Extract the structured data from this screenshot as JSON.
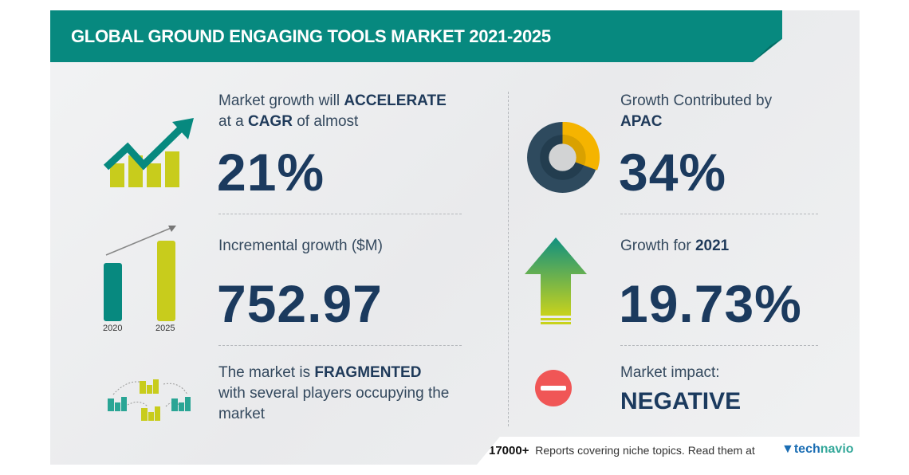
{
  "title": "GLOBAL GROUND ENGAGING TOOLS MARKET 2021-2025",
  "left": {
    "cagr": {
      "pre": "Market growth will ",
      "strong1": "ACCELERATE",
      "mid": "at a ",
      "strong2": "CAGR",
      "post": " of almost",
      "value": "21%"
    },
    "incremental": {
      "label": "Incremental growth ($M)",
      "value": "752.97",
      "years": [
        "2020",
        "2025"
      ]
    },
    "market": {
      "pre": "The market is ",
      "strong": "FRAGMENTED",
      "line2": "with several players occupying the",
      "line3": "market"
    }
  },
  "right": {
    "region": {
      "label": "Growth Contributed by",
      "region": "APAC",
      "value": "34%"
    },
    "yoy": {
      "label": "Growth for ",
      "year": "2021",
      "value": "19.73%"
    },
    "impact": {
      "label": "Market impact:",
      "value": "NEGATIVE"
    }
  },
  "footer": {
    "count": "17000+",
    "text": "Reports covering niche topics. Read them at",
    "logo_a": "tech",
    "logo_b": "navio"
  },
  "colors": {
    "teal": "#07897f",
    "navy": "#1b3a5e",
    "lime": "#c8cc1c",
    "amber": "#f5b400",
    "red": "#f05656"
  }
}
